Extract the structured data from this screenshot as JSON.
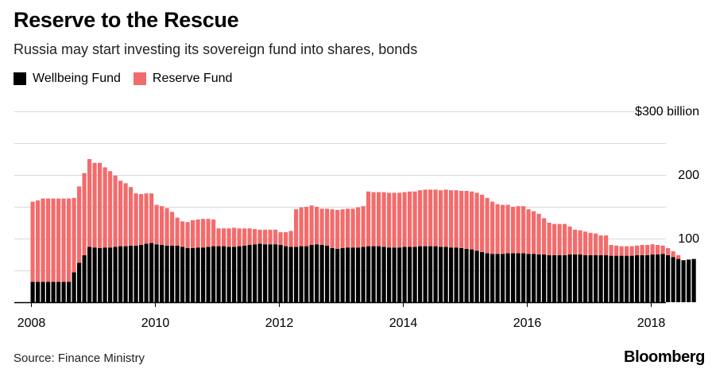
{
  "title": "Reserve to the Rescue",
  "subtitle": "Russia may start investing its sovereign fund into shares, bonds",
  "source": "Source: Finance Ministry",
  "brand": "Bloomberg",
  "colors": {
    "wellbeing": "#000000",
    "reserve": "#f46b6b",
    "grid": "#d9d9d9",
    "axis": "#000000"
  },
  "legend": [
    {
      "label": "Wellbeing Fund",
      "color": "#000000"
    },
    {
      "label": "Reserve Fund",
      "color": "#f46b6b"
    }
  ],
  "chart_data": {
    "type": "bar",
    "stacked": true,
    "title": "Reserve to the Rescue",
    "subtitle": "Russia may start investing its sovereign fund into shares, bonds",
    "grid": true,
    "legend_position": "top-left",
    "x_start": 2008.0,
    "x_step_months": 1,
    "xlim": [
      2008.0,
      2018.25
    ],
    "ylim": [
      0,
      300
    ],
    "xticks": [
      {
        "value": 2008,
        "label": "2008"
      },
      {
        "value": 2010,
        "label": "2010"
      },
      {
        "value": 2012,
        "label": "2012"
      },
      {
        "value": 2014,
        "label": "2014"
      },
      {
        "value": 2016,
        "label": "2016"
      },
      {
        "value": 2018,
        "label": "2018"
      }
    ],
    "yticks": [
      {
        "value": 100,
        "label": "100"
      },
      {
        "value": 200,
        "label": "200"
      },
      {
        "value": 300,
        "label": "$300 billion"
      }
    ],
    "gridlines": [
      50,
      100,
      150,
      200,
      250,
      300
    ],
    "series": [
      {
        "name": "Wellbeing Fund",
        "color": "#000000",
        "values": [
          32,
          32,
          32,
          32,
          32,
          32,
          32,
          32,
          47,
          62,
          74,
          87,
          86,
          85,
          86,
          86,
          87,
          88,
          88,
          89,
          89,
          90,
          92,
          93,
          91,
          90,
          89,
          89,
          89,
          87,
          85,
          85,
          86,
          86,
          87,
          88,
          88,
          88,
          87,
          87,
          88,
          89,
          90,
          91,
          92,
          91,
          91,
          91,
          90,
          88,
          87,
          87,
          88,
          88,
          90,
          91,
          90,
          89,
          85,
          84,
          85,
          86,
          86,
          86,
          87,
          88,
          88,
          88,
          87,
          86,
          86,
          86,
          87,
          87,
          87,
          88,
          88,
          88,
          88,
          87,
          87,
          86,
          86,
          85,
          84,
          83,
          81,
          79,
          77,
          76,
          76,
          76,
          77,
          77,
          77,
          77,
          76,
          76,
          75,
          75,
          74,
          74,
          74,
          74,
          75,
          75,
          75,
          74,
          74,
          74,
          74,
          74,
          73,
          73,
          73,
          73,
          73,
          74,
          74,
          74,
          75,
          75,
          76,
          74,
          71,
          68,
          66,
          67,
          68
        ]
      },
      {
        "name": "Reserve Fund",
        "color": "#f46b6b",
        "values": [
          126,
          128,
          131,
          131,
          131,
          131,
          131,
          131,
          117,
          120,
          129,
          138,
          133,
          134,
          126,
          120,
          112,
          103,
          99,
          92,
          82,
          80,
          79,
          78,
          62,
          61,
          59,
          53,
          44,
          40,
          41,
          44,
          44,
          45,
          44,
          42,
          28,
          28,
          29,
          30,
          28,
          27,
          26,
          24,
          22,
          23,
          23,
          23,
          20,
          22,
          25,
          59,
          61,
          62,
          62,
          59,
          57,
          58,
          61,
          61,
          61,
          61,
          61,
          63,
          64,
          86,
          85,
          85,
          86,
          86,
          86,
          86,
          86,
          87,
          87,
          88,
          89,
          89,
          89,
          89,
          90,
          90,
          90,
          90,
          91,
          91,
          91,
          90,
          87,
          82,
          78,
          77,
          76,
          73,
          74,
          74,
          70,
          67,
          64,
          57,
          51,
          49,
          49,
          49,
          44,
          39,
          38,
          37,
          35,
          34,
          31,
          31,
          17,
          16,
          15,
          15,
          15,
          15,
          16,
          16,
          16,
          15,
          13,
          11,
          9,
          6,
          0,
          0,
          0
        ]
      }
    ]
  }
}
